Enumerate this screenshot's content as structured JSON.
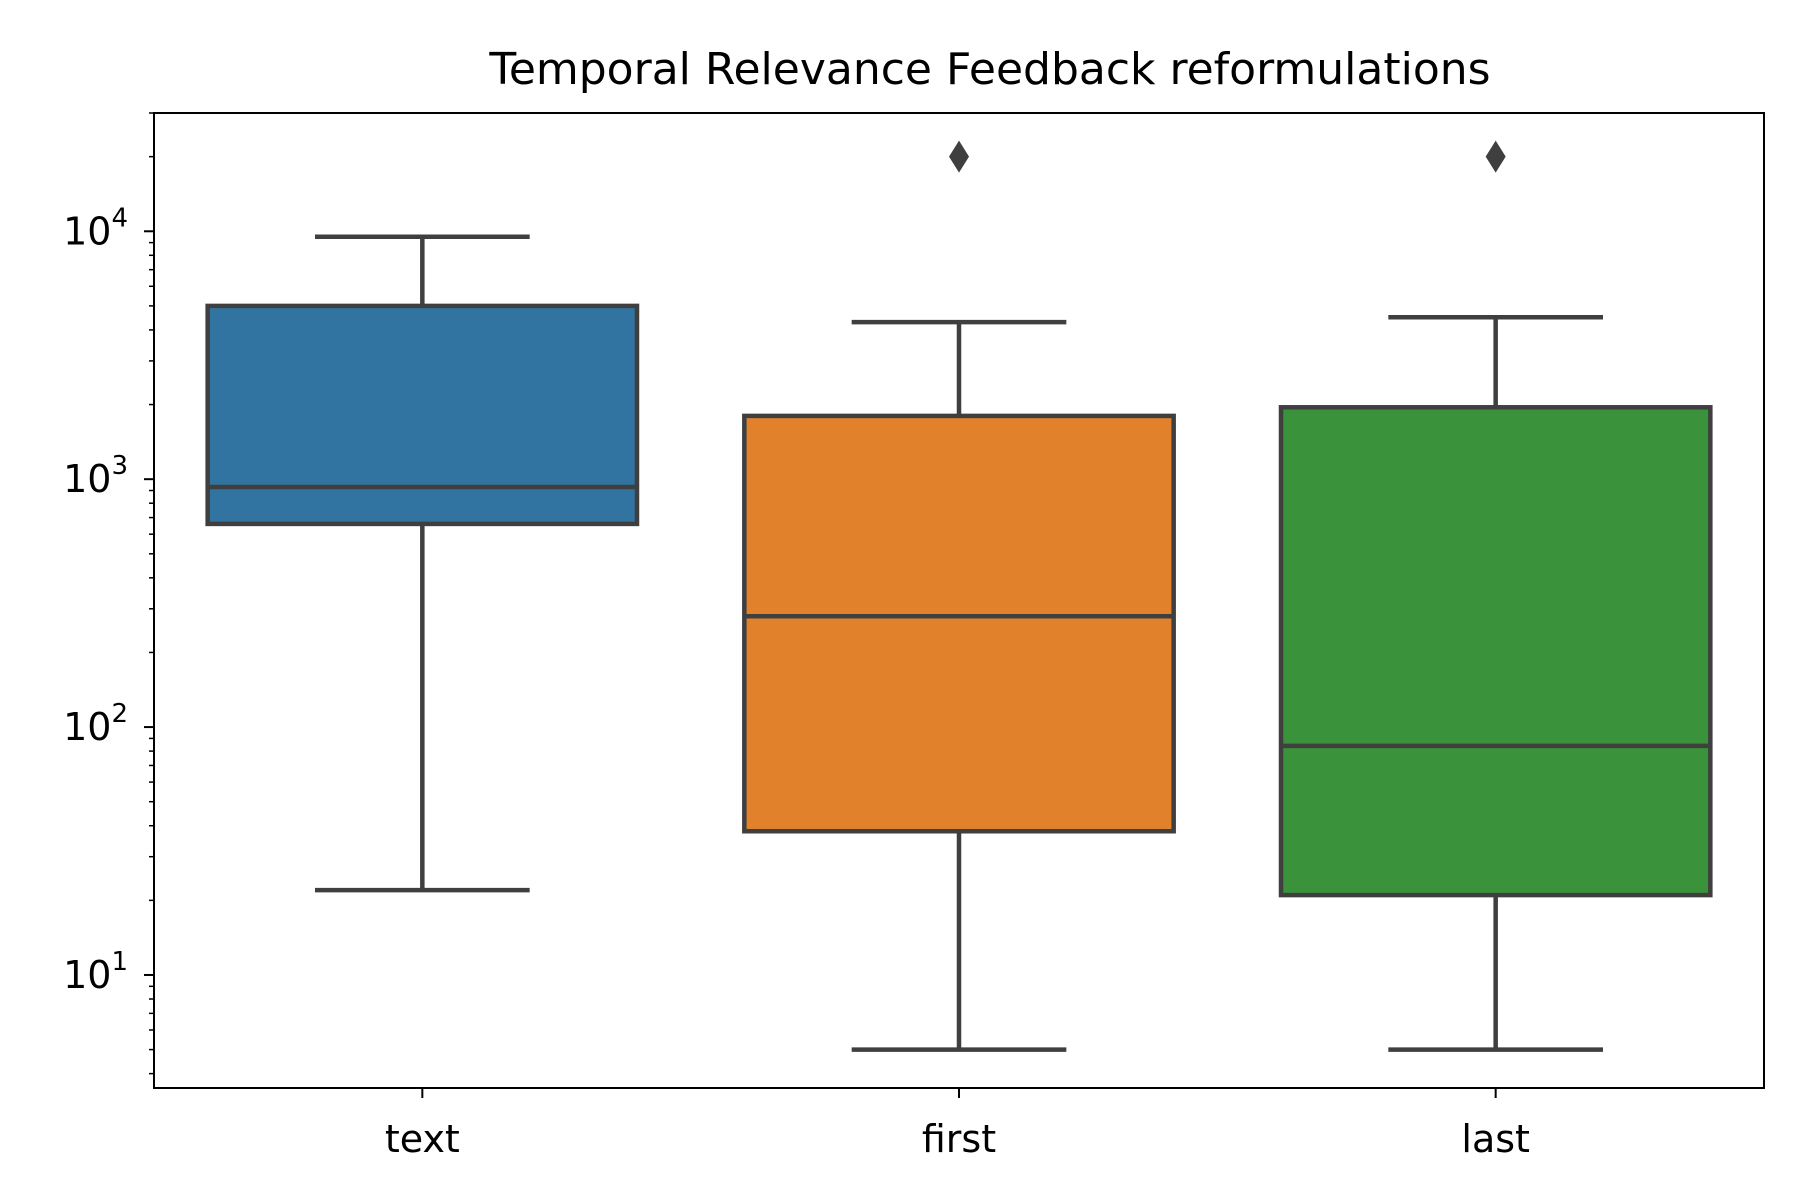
{
  "chart_data": {
    "type": "box",
    "title": "Temporal Relevance Feedback reformulations",
    "xlabel": "",
    "ylabel": "",
    "yscale": "log",
    "ylim": [
      3.5,
      30000
    ],
    "y_ticks": [
      10,
      100,
      1000,
      10000
    ],
    "y_tick_labels": [
      {
        "base": "10",
        "exp": "1"
      },
      {
        "base": "10",
        "exp": "2"
      },
      {
        "base": "10",
        "exp": "3"
      },
      {
        "base": "10",
        "exp": "4"
      }
    ],
    "categories": [
      "text",
      "first",
      "last"
    ],
    "colors": [
      "#3274a1",
      "#e1812c",
      "#3a923a"
    ],
    "edge_color": "#3f3f3f",
    "grid": false,
    "boxes": [
      {
        "category": "text",
        "whisker_low": 22,
        "q1": 660,
        "median": 930,
        "q3": 5000,
        "whisker_high": 9500,
        "outliers": []
      },
      {
        "category": "first",
        "whisker_low": 5,
        "q1": 38,
        "median": 280,
        "q3": 1800,
        "whisker_high": 4300,
        "outliers": [
          20000
        ]
      },
      {
        "category": "last",
        "whisker_low": 5,
        "q1": 21,
        "median": 84,
        "q3": 1950,
        "whisker_high": 4500,
        "outliers": [
          20000
        ]
      }
    ]
  }
}
